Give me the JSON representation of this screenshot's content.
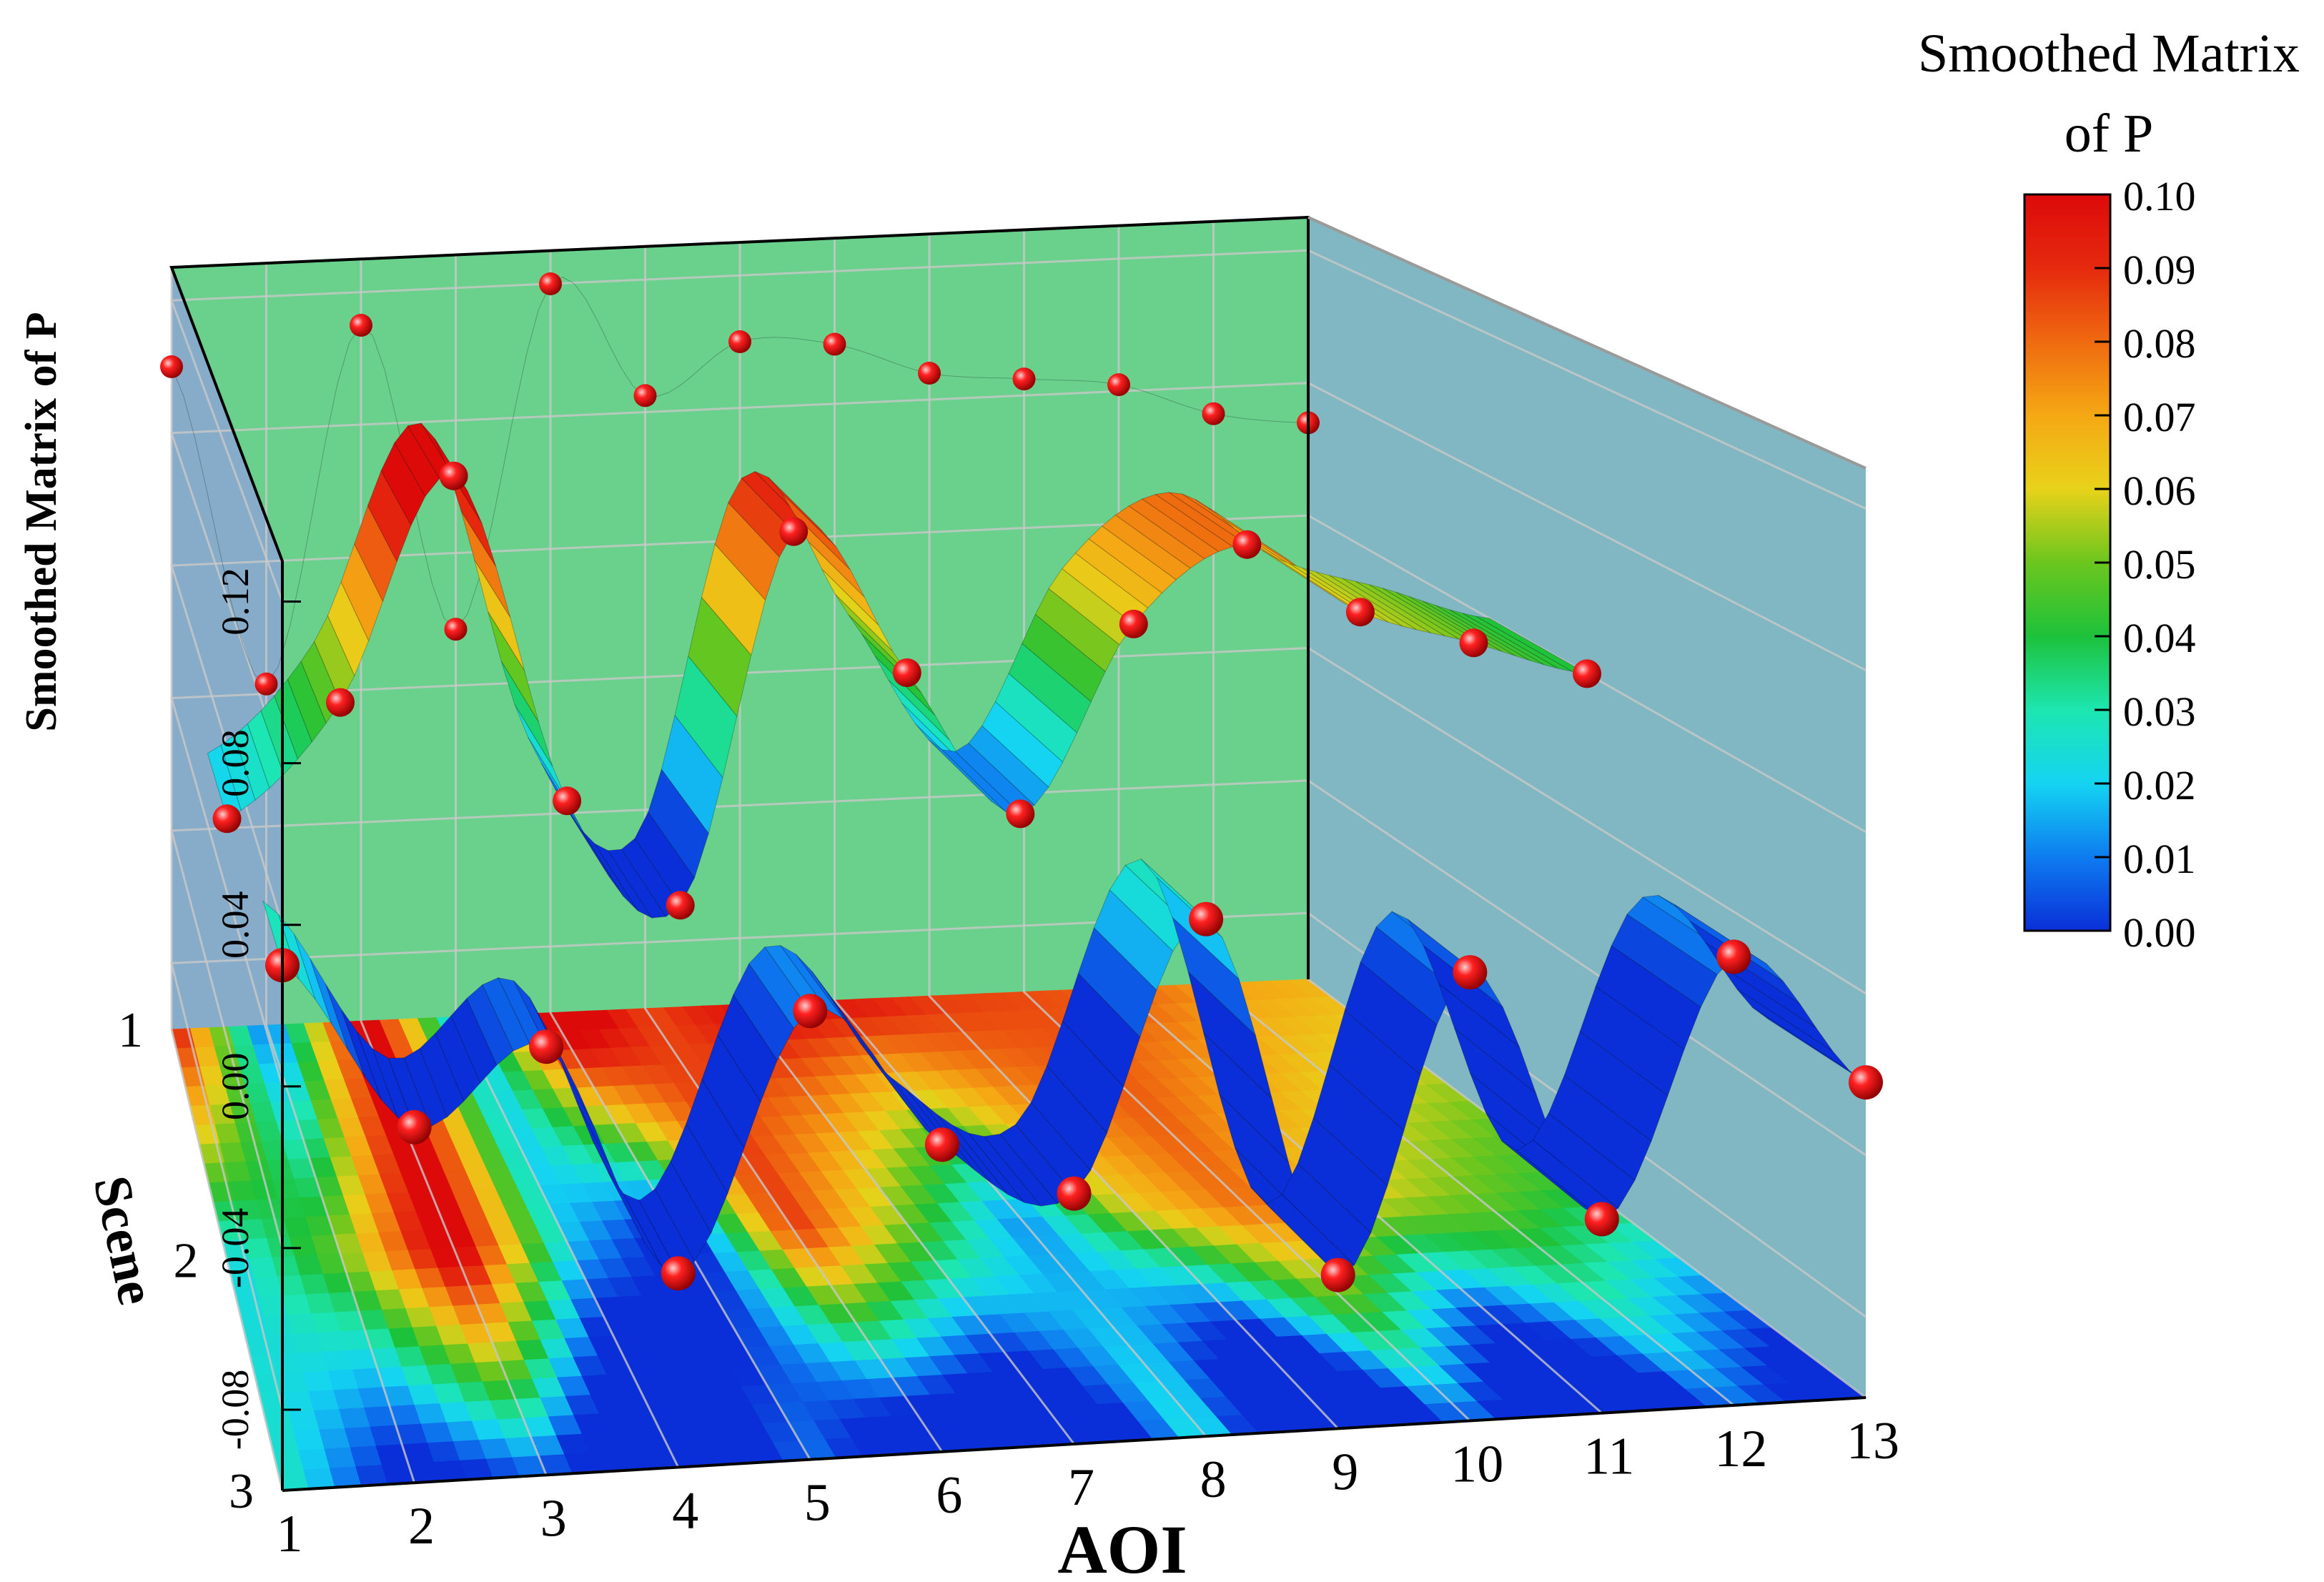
{
  "chart_data": {
    "type": "surface3d",
    "title": "",
    "xlabel": "AOI",
    "ylabel": "Scene",
    "zlabel": "Smoothed Matrix of P",
    "x_ticks": [
      "1",
      "2",
      "3",
      "4",
      "5",
      "6",
      "7",
      "8",
      "9",
      "10",
      "11",
      "12",
      "13"
    ],
    "y_ticks": [
      "1",
      "2",
      "3"
    ],
    "z_ticks": [
      "0.12",
      "0.08",
      "0.04",
      "0.00",
      "-0.04",
      "-0.08"
    ],
    "zlim": [
      -0.1,
      0.13
    ],
    "grid": true,
    "colorbar": {
      "title_line1": "Smoothed Matrix",
      "title_line2": "of P",
      "ticks": [
        "0.10",
        "0.09",
        "0.08",
        "0.07",
        "0.06",
        "0.05",
        "0.04",
        "0.03",
        "0.02",
        "0.01",
        "0.00"
      ],
      "range": [
        0.0,
        0.1
      ],
      "colors": [
        "#0a2fd8",
        "#0e7cf0",
        "#14d4f2",
        "#1de6b0",
        "#1dc23b",
        "#6cc61e",
        "#e8d21a",
        "#f5a814",
        "#ef6a10",
        "#e52a0e",
        "#dd0a0a"
      ]
    },
    "series": [
      {
        "name": "Scene 1",
        "values": [
          0.1,
          0.003,
          0.11,
          0.017,
          0.12,
          0.085,
          0.1,
          0.098,
          0.088,
          0.085,
          0.082,
          0.072,
          0.068
        ]
      },
      {
        "name": "Scene 2",
        "values": [
          0.02,
          0.05,
          0.11,
          0.02,
          -0.01,
          0.09,
          0.05,
          0.01,
          0.06,
          0.08,
          0.06,
          0.05,
          0.04
        ]
      },
      {
        "name": "Scene 3",
        "values": [
          0.03,
          -0.012,
          0.006,
          -0.052,
          0.011,
          -0.024,
          -0.038,
          0.028,
          -0.062,
          0.011,
          -0.052,
          0.011,
          -0.022
        ]
      }
    ],
    "marker_color": "#e01010",
    "floor_contour": true,
    "back_wall_color": "#62cf86",
    "side_wall_color": "#7ab3bf"
  }
}
